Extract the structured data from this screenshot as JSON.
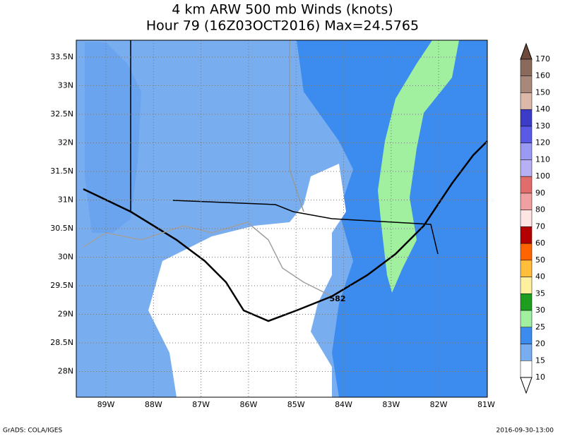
{
  "header": {
    "line1": "4 km ARW 500 mb Winds (knots)",
    "line2": "Hour 79 (16Z03OCT2016) Max=24.5765"
  },
  "map": {
    "lat_labels": [
      "33.5N",
      "33N",
      "32.5N",
      "32N",
      "31.5N",
      "31N",
      "30.5N",
      "30N",
      "29.5N",
      "29N",
      "28.5N",
      "28N"
    ],
    "lon_labels": [
      "89W",
      "88W",
      "87W",
      "86W",
      "85W",
      "84W",
      "83W",
      "82W",
      "81W"
    ],
    "contour_label": "582"
  },
  "colorbar": {
    "labels": [
      "170",
      "160",
      "150",
      "140",
      "130",
      "120",
      "110",
      "100",
      "90",
      "80",
      "70",
      "60",
      "50",
      "40",
      "35",
      "30",
      "25",
      "20",
      "15",
      "10"
    ],
    "colors": [
      "#6e4a3b",
      "#8a6a5c",
      "#a8887a",
      "#dcb8a8",
      "#3c3cc8",
      "#5a5ae6",
      "#9a9af2",
      "#b8b0f4",
      "#e06c6c",
      "#f0a0a0",
      "#ffe4e4",
      "#b40000",
      "#ff6400",
      "#ffbe3c",
      "#fff0a0",
      "#1e9e1e",
      "#a0f0a0",
      "#3c8cf0",
      "#78aef0",
      "#ffffff"
    ]
  },
  "footer": {
    "left": "GrADS: COLA/IGES",
    "right": "2016-09-30-13:00"
  }
}
